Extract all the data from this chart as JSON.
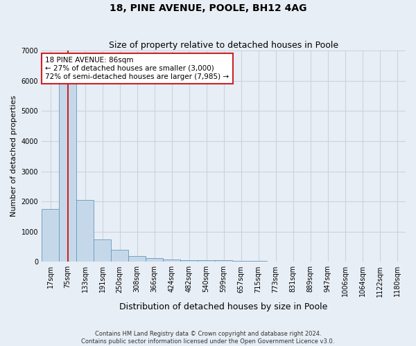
{
  "title": "18, PINE AVENUE, POOLE, BH12 4AG",
  "subtitle": "Size of property relative to detached houses in Poole",
  "xlabel": "Distribution of detached houses by size in Poole",
  "ylabel": "Number of detached properties",
  "annotation_line1": "18 PINE AVENUE: 86sqm",
  "annotation_line2": "← 27% of detached houses are smaller (3,000)",
  "annotation_line3": "72% of semi-detached houses are larger (7,985) →",
  "footnote1": "Contains HM Land Registry data © Crown copyright and database right 2024.",
  "footnote2": "Contains public sector information licensed under the Open Government Licence v3.0.",
  "bin_labels": [
    "17sqm",
    "75sqm",
    "133sqm",
    "191sqm",
    "250sqm",
    "308sqm",
    "366sqm",
    "424sqm",
    "482sqm",
    "540sqm",
    "599sqm",
    "657sqm",
    "715sqm",
    "773sqm",
    "831sqm",
    "889sqm",
    "947sqm",
    "1006sqm",
    "1064sqm",
    "1122sqm",
    "1180sqm"
  ],
  "bar_values": [
    1750,
    5900,
    2050,
    750,
    400,
    200,
    120,
    80,
    60,
    55,
    45,
    40,
    30,
    5,
    5,
    5,
    5,
    5,
    5,
    5,
    5
  ],
  "bar_color": "#c5d8ea",
  "bar_edge_color": "#6699bb",
  "grid_color": "#c8d4e0",
  "background_color": "#e8eef5",
  "annotation_box_facecolor": "#ffffff",
  "annotation_box_edgecolor": "#cc2222",
  "marker_line_color": "#cc2222",
  "ylim": [
    0,
    7000
  ],
  "yticks": [
    0,
    1000,
    2000,
    3000,
    4000,
    5000,
    6000,
    7000
  ],
  "figsize": [
    6.0,
    5.0
  ],
  "dpi": 100,
  "property_bin_index": 1,
  "title_fontsize": 10,
  "subtitle_fontsize": 9,
  "axis_label_fontsize": 8,
  "tick_fontsize": 7,
  "annotation_fontsize": 7.5,
  "footnote_fontsize": 6
}
